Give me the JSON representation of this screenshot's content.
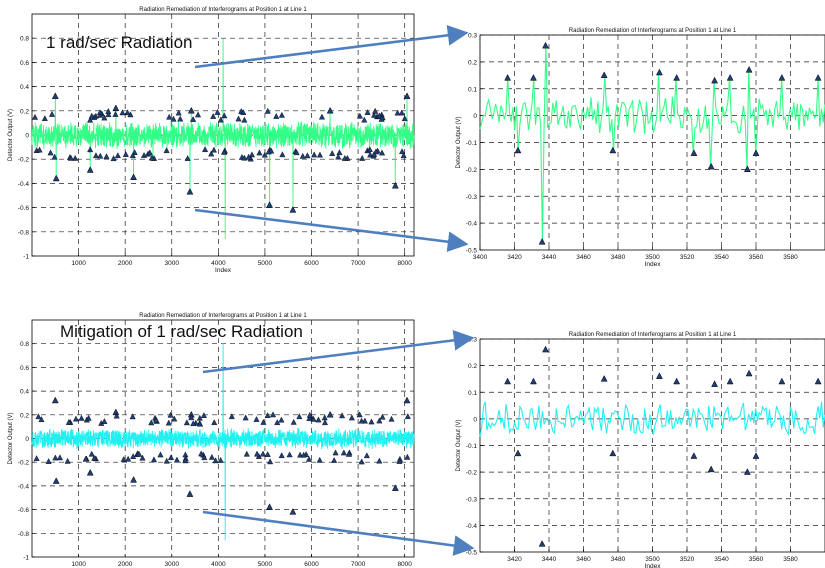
{
  "annotations": {
    "top": "1 rad/sec Radiation",
    "bottom": "Mitigation of 1 rad/sec Radiation"
  },
  "colors": {
    "raw_signal": "#33ff88",
    "mitigated_signal": "#22f0f0",
    "triangle_fill": "#1f3f77",
    "arrow": "#4f7fbf"
  },
  "chart_data": [
    {
      "type": "line",
      "panel": "top-left",
      "title": "Radiation Remediation of Interferograms at Position 1 at Line 1",
      "xlabel": "Index",
      "ylabel": "Detector Output (V)",
      "xlim": [
        0,
        8200
      ],
      "ylim": [
        -1,
        1
      ],
      "xticks": [
        1000,
        2000,
        3000,
        4000,
        5000,
        6000,
        7000,
        8000
      ],
      "yticks": [
        -1,
        -0.8,
        -0.6,
        -0.4,
        -0.2,
        0,
        0.2,
        0.4,
        0.6,
        0.8
      ],
      "grid": true,
      "series": [
        {
          "role": "signal",
          "color": "#33ff88",
          "noise_band": [
            -0.12,
            0.12
          ],
          "spikes": [
            {
              "x": 500,
              "y": 0.32
            },
            {
              "x": 520,
              "y": -0.36
            },
            {
              "x": 1250,
              "y": -0.29
            },
            {
              "x": 2180,
              "y": -0.35
            },
            {
              "x": 3390,
              "y": -0.47
            },
            {
              "x": 3420,
              "y": 0.2
            },
            {
              "x": 4100,
              "y": 0.8
            },
            {
              "x": 4150,
              "y": -0.86
            },
            {
              "x": 5100,
              "y": -0.58
            },
            {
              "x": 5600,
              "y": -0.62
            },
            {
              "x": 7800,
              "y": -0.42
            },
            {
              "x": 8050,
              "y": 0.32
            },
            {
              "x": 1800,
              "y": 0.22
            },
            {
              "x": 2600,
              "y": -0.2
            },
            {
              "x": 6400,
              "y": 0.2
            }
          ]
        },
        {
          "role": "detected-outliers",
          "marker": "triangle",
          "points": [
            {
              "x": 500,
              "y": 0.32
            },
            {
              "x": 520,
              "y": -0.36
            },
            {
              "x": 1250,
              "y": -0.29
            },
            {
              "x": 2180,
              "y": -0.35
            },
            {
              "x": 3390,
              "y": -0.47
            },
            {
              "x": 5100,
              "y": -0.58
            },
            {
              "x": 5600,
              "y": -0.62
            },
            {
              "x": 7800,
              "y": -0.42
            },
            {
              "x": 8050,
              "y": 0.32
            },
            {
              "x": 3420,
              "y": 0.2
            },
            {
              "x": 1800,
              "y": 0.22
            },
            {
              "x": 6400,
              "y": 0.2
            }
          ]
        }
      ]
    },
    {
      "type": "line",
      "panel": "top-right",
      "title": "Radiation Remediation of Interferograms at Position 1 at Line 1",
      "xlabel": "Index",
      "ylabel": "Detector Output (V)",
      "xlim": [
        3400,
        3600
      ],
      "ylim": [
        -0.5,
        0.3
      ],
      "xticks": [
        3400,
        3420,
        3440,
        3460,
        3480,
        3500,
        3520,
        3540,
        3560,
        3580
      ],
      "yticks": [
        -0.5,
        -0.4,
        -0.3,
        -0.2,
        -0.1,
        0,
        0.1,
        0.2,
        0.3
      ],
      "grid": true,
      "series": [
        {
          "role": "signal",
          "color": "#33ff88",
          "noise_band": [
            -0.08,
            0.08
          ],
          "spikes": [
            {
              "x": 3416,
              "y": 0.14
            },
            {
              "x": 3422,
              "y": -0.13
            },
            {
              "x": 3431,
              "y": 0.14
            },
            {
              "x": 3436,
              "y": -0.47
            },
            {
              "x": 3438,
              "y": 0.26
            },
            {
              "x": 3472,
              "y": 0.15
            },
            {
              "x": 3477,
              "y": -0.13
            },
            {
              "x": 3504,
              "y": 0.16
            },
            {
              "x": 3514,
              "y": 0.14
            },
            {
              "x": 3524,
              "y": -0.14
            },
            {
              "x": 3534,
              "y": -0.19
            },
            {
              "x": 3536,
              "y": 0.13
            },
            {
              "x": 3545,
              "y": 0.14
            },
            {
              "x": 3555,
              "y": -0.2
            },
            {
              "x": 3556,
              "y": 0.17
            },
            {
              "x": 3560,
              "y": -0.14
            },
            {
              "x": 3575,
              "y": 0.14
            },
            {
              "x": 3596,
              "y": 0.14
            }
          ]
        },
        {
          "role": "detected-outliers",
          "marker": "triangle",
          "points": [
            {
              "x": 3416,
              "y": 0.14
            },
            {
              "x": 3422,
              "y": -0.13
            },
            {
              "x": 3431,
              "y": 0.14
            },
            {
              "x": 3436,
              "y": -0.47
            },
            {
              "x": 3438,
              "y": 0.26
            },
            {
              "x": 3472,
              "y": 0.15
            },
            {
              "x": 3477,
              "y": -0.13
            },
            {
              "x": 3504,
              "y": 0.16
            },
            {
              "x": 3514,
              "y": 0.14
            },
            {
              "x": 3524,
              "y": -0.14
            },
            {
              "x": 3534,
              "y": -0.19
            },
            {
              "x": 3536,
              "y": 0.13
            },
            {
              "x": 3545,
              "y": 0.14
            },
            {
              "x": 3555,
              "y": -0.2
            },
            {
              "x": 3556,
              "y": 0.17
            },
            {
              "x": 3560,
              "y": -0.14
            },
            {
              "x": 3575,
              "y": 0.14
            },
            {
              "x": 3596,
              "y": 0.14
            }
          ]
        }
      ]
    },
    {
      "type": "line",
      "panel": "bottom-left",
      "title": "Radiation Remediation of Interferograms at Position 1 at Line 1",
      "xlabel": "Index",
      "ylabel": "Detector Output (V)",
      "xlim": [
        0,
        8200
      ],
      "ylim": [
        -1,
        1
      ],
      "xticks": [
        1000,
        2000,
        3000,
        4000,
        5000,
        6000,
        7000,
        8000
      ],
      "yticks": [
        -1,
        -0.8,
        -0.6,
        -0.4,
        -0.2,
        0,
        0.2,
        0.4,
        0.6,
        0.8
      ],
      "grid": true,
      "series": [
        {
          "role": "signal",
          "color": "#22f0f0",
          "noise_band": [
            -0.09,
            0.09
          ],
          "spikes": [
            {
              "x": 4100,
              "y": 0.8
            },
            {
              "x": 4150,
              "y": -0.86
            }
          ]
        },
        {
          "role": "detected-outliers",
          "marker": "triangle",
          "points": [
            {
              "x": 500,
              "y": 0.32
            },
            {
              "x": 520,
              "y": -0.36
            },
            {
              "x": 1250,
              "y": -0.29
            },
            {
              "x": 2180,
              "y": -0.35
            },
            {
              "x": 3390,
              "y": -0.47
            },
            {
              "x": 5100,
              "y": -0.58
            },
            {
              "x": 5600,
              "y": -0.62
            },
            {
              "x": 7800,
              "y": -0.42
            },
            {
              "x": 8050,
              "y": 0.32
            },
            {
              "x": 3420,
              "y": 0.2
            },
            {
              "x": 1800,
              "y": 0.22
            },
            {
              "x": 6400,
              "y": 0.2
            }
          ]
        }
      ]
    },
    {
      "type": "line",
      "panel": "bottom-right",
      "title": "Radiation Remediation of Interferograms at Position 1 at Line 1",
      "xlabel": "Index",
      "ylabel": "Detector Output (V)",
      "xlim": [
        3400,
        3600
      ],
      "ylim": [
        -0.5,
        0.3
      ],
      "xticks": [
        3420,
        3440,
        3460,
        3480,
        3500,
        3520,
        3540,
        3560,
        3580
      ],
      "yticks": [
        -0.5,
        -0.4,
        -0.3,
        -0.2,
        -0.1,
        0,
        0.1,
        0.2,
        0.3
      ],
      "grid": true,
      "series": [
        {
          "role": "signal",
          "color": "#22f0f0",
          "noise_band": [
            -0.07,
            0.07
          ],
          "spikes": []
        },
        {
          "role": "detected-outliers",
          "marker": "triangle",
          "points": [
            {
              "x": 3416,
              "y": 0.14
            },
            {
              "x": 3422,
              "y": -0.13
            },
            {
              "x": 3431,
              "y": 0.14
            },
            {
              "x": 3436,
              "y": -0.47
            },
            {
              "x": 3438,
              "y": 0.26
            },
            {
              "x": 3472,
              "y": 0.15
            },
            {
              "x": 3477,
              "y": -0.13
            },
            {
              "x": 3504,
              "y": 0.16
            },
            {
              "x": 3514,
              "y": 0.14
            },
            {
              "x": 3524,
              "y": -0.14
            },
            {
              "x": 3534,
              "y": -0.19
            },
            {
              "x": 3536,
              "y": 0.13
            },
            {
              "x": 3545,
              "y": 0.14
            },
            {
              "x": 3555,
              "y": -0.2
            },
            {
              "x": 3556,
              "y": 0.17
            },
            {
              "x": 3560,
              "y": -0.14
            },
            {
              "x": 3575,
              "y": 0.14
            },
            {
              "x": 3596,
              "y": 0.14
            }
          ]
        }
      ]
    }
  ]
}
